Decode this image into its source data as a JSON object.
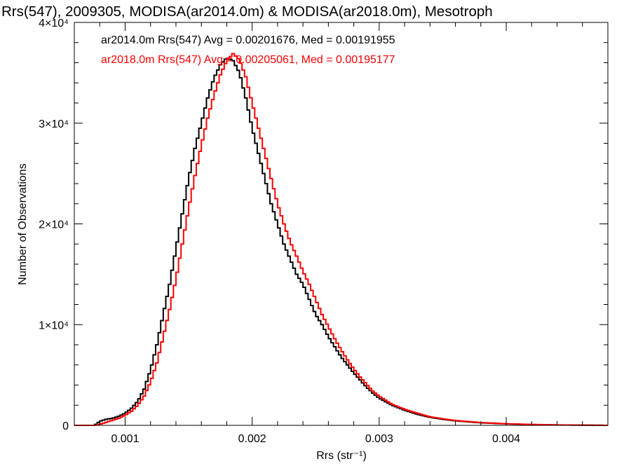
{
  "chart_data": {
    "type": "line",
    "title": "Rrs(547), 2009305, MODISA(ar2014.0m) & MODISA(ar2018.0m), Mesotroph",
    "xlabel": "Rrs (str⁻¹)",
    "ylabel": "Number of Observations",
    "xlim": [
      0.0006,
      0.0048
    ],
    "ylim": [
      0,
      40000
    ],
    "x_ticks": [
      {
        "value": 0.001,
        "label": "0.001"
      },
      {
        "value": 0.002,
        "label": "0.002"
      },
      {
        "value": 0.003,
        "label": "0.003"
      },
      {
        "value": 0.004,
        "label": "0.004"
      }
    ],
    "y_ticks": [
      {
        "value": 0,
        "label": "0"
      },
      {
        "value": 10000,
        "label": "1×10⁴"
      },
      {
        "value": 20000,
        "label": "2×10⁴"
      },
      {
        "value": 30000,
        "label": "3×10⁴"
      },
      {
        "value": 40000,
        "label": "4×10⁴"
      }
    ],
    "grid": false,
    "legend_position": "top-left",
    "bin_width": 2e-05,
    "series": [
      {
        "name": "ar2014.0m Rrs(547) Avg = 0.00201676, Med = 0.00191955",
        "color": "#000000",
        "x": [
          0.0007,
          0.00076,
          0.0008,
          0.00085,
          0.0009,
          0.00095,
          0.001,
          0.00105,
          0.0011,
          0.00115,
          0.0012,
          0.00125,
          0.0013,
          0.00135,
          0.0014,
          0.00145,
          0.0015,
          0.00155,
          0.0016,
          0.00165,
          0.0017,
          0.00175,
          0.0018,
          0.00185,
          0.0019,
          0.00195,
          0.002,
          0.00205,
          0.0021,
          0.00215,
          0.0022,
          0.00225,
          0.0023,
          0.00235,
          0.0024,
          0.00245,
          0.0025,
          0.00255,
          0.0026,
          0.00265,
          0.0027,
          0.00275,
          0.0028,
          0.00285,
          0.0029,
          0.00295,
          0.003,
          0.0031,
          0.0032,
          0.0033,
          0.0034,
          0.0035,
          0.0036,
          0.0038,
          0.004,
          0.0042,
          0.0044,
          0.0046,
          0.0048
        ],
        "y": [
          0,
          0,
          400,
          600,
          700,
          900,
          1200,
          1700,
          2400,
          3600,
          5500,
          8000,
          11000,
          14000,
          17500,
          21000,
          24500,
          27500,
          30000,
          32500,
          34500,
          35800,
          36500,
          36200,
          35000,
          32500,
          29500,
          27000,
          24500,
          22000,
          20000,
          18000,
          16500,
          15000,
          14000,
          12500,
          11000,
          10000,
          8800,
          7800,
          6800,
          6000,
          5200,
          4500,
          3800,
          3200,
          2700,
          2000,
          1500,
          1100,
          800,
          600,
          450,
          250,
          150,
          80,
          40,
          20,
          0
        ]
      },
      {
        "name": "ar2018.0m Rrs(547) Avg = 0.00205061, Med = 0.00195177",
        "color": "#ff0000",
        "x": [
          0.0007,
          0.00076,
          0.0008,
          0.00085,
          0.0009,
          0.00095,
          0.001,
          0.00105,
          0.0011,
          0.00115,
          0.0012,
          0.00125,
          0.0013,
          0.00135,
          0.0014,
          0.00145,
          0.0015,
          0.00155,
          0.0016,
          0.00165,
          0.0017,
          0.00175,
          0.0018,
          0.00185,
          0.0019,
          0.00195,
          0.002,
          0.00205,
          0.0021,
          0.00215,
          0.0022,
          0.00225,
          0.0023,
          0.00235,
          0.0024,
          0.00245,
          0.0025,
          0.00255,
          0.0026,
          0.00265,
          0.0027,
          0.00275,
          0.0028,
          0.00285,
          0.0029,
          0.00295,
          0.003,
          0.0031,
          0.0032,
          0.0033,
          0.0034,
          0.0035,
          0.0036,
          0.0038,
          0.004,
          0.0042,
          0.0044,
          0.0046,
          0.0048
        ],
        "y": [
          0,
          0,
          100,
          300,
          500,
          700,
          1000,
          1400,
          2000,
          2900,
          4300,
          6200,
          8800,
          11500,
          14500,
          18000,
          21500,
          24800,
          27800,
          30500,
          32800,
          34800,
          36200,
          36900,
          36300,
          34600,
          32000,
          29500,
          27000,
          24500,
          22000,
          20000,
          18200,
          16800,
          15300,
          14000,
          12500,
          11000,
          9800,
          8600,
          7500,
          6500,
          5600,
          4800,
          4100,
          3400,
          2900,
          2100,
          1600,
          1200,
          850,
          650,
          480,
          280,
          160,
          90,
          45,
          20,
          0
        ]
      }
    ]
  }
}
